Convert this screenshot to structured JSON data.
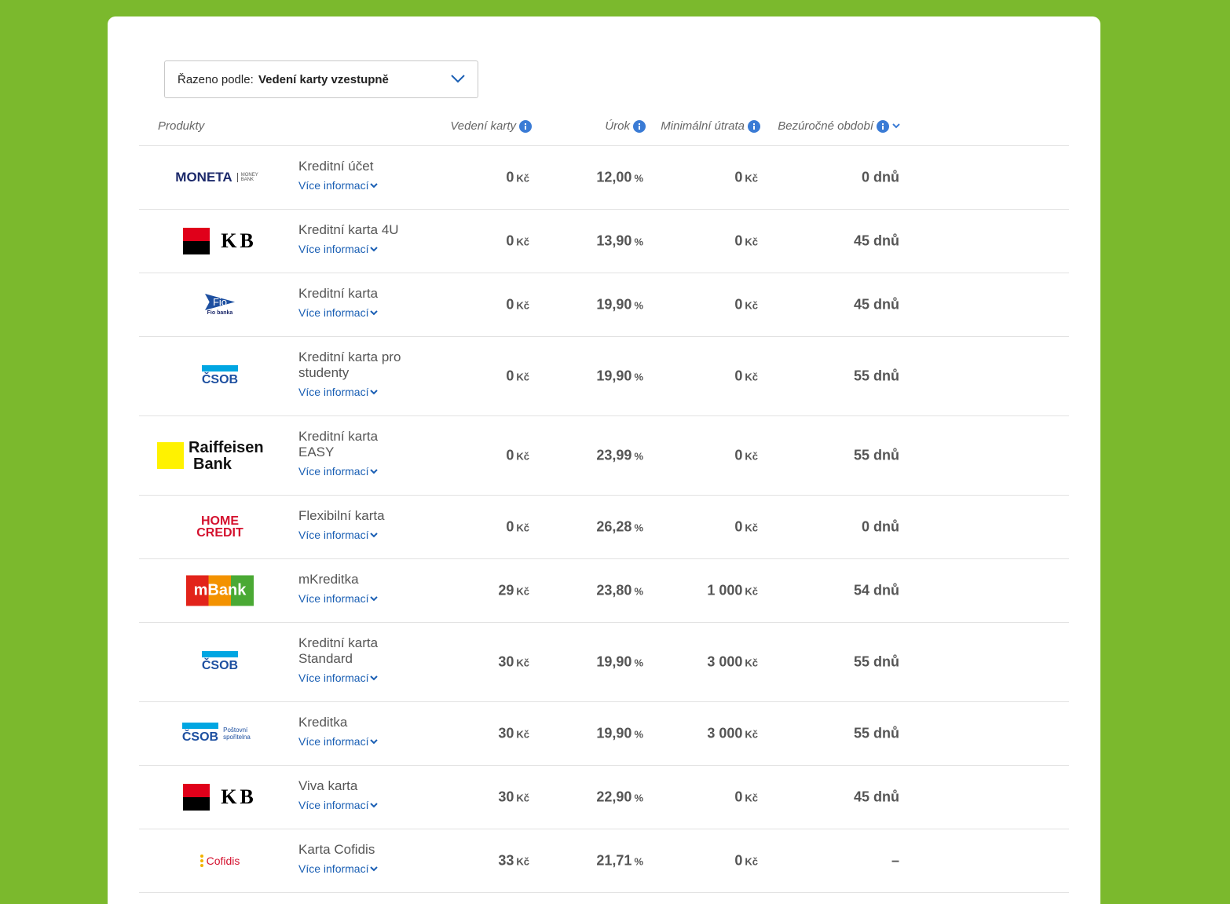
{
  "sort": {
    "label": "Řazeno podle:",
    "value": "Vedení karty vzestupně"
  },
  "header": {
    "product": "Produkty",
    "fee": "Vedení karty",
    "rate": "Úrok",
    "min": "Minimální útrata",
    "period": "Bezúročné období"
  },
  "rows": [
    {
      "logo": [
        "MONETA",
        "MONEY BANK"
      ],
      "name": "Kreditní účet",
      "link": "Více informací",
      "fee": [
        "0",
        "Kč"
      ],
      "rate": [
        "12,00",
        "%"
      ],
      "min": [
        "0",
        "Kč"
      ],
      "period": "0 dnů"
    },
    {
      "logo": [
        "KB"
      ],
      "name": "Kreditní karta 4U",
      "link": "Více informací",
      "fee": [
        "0",
        "Kč"
      ],
      "rate": [
        "13,90",
        "%"
      ],
      "min": [
        "0",
        "Kč"
      ],
      "period": "45 dnů"
    },
    {
      "logo": [
        "Fio",
        "Fio banka"
      ],
      "name": "Kreditní karta",
      "link": "Více informací",
      "fee": [
        "0",
        "Kč"
      ],
      "rate": [
        "19,90",
        "%"
      ],
      "min": [
        "0",
        "Kč"
      ],
      "period": "45 dnů"
    },
    {
      "logo": [
        "ČSOB"
      ],
      "name": "Kreditní karta pro studenty",
      "link": "Více informací",
      "fee": [
        "0",
        "Kč"
      ],
      "rate": [
        "19,90",
        "%"
      ],
      "min": [
        "0",
        "Kč"
      ],
      "period": "55 dnů"
    },
    {
      "logo": [
        "Raiffeisen",
        "Bank"
      ],
      "name": "Kreditní karta EASY",
      "link": "Více informací",
      "fee": [
        "0",
        "Kč"
      ],
      "rate": [
        "23,99",
        "%"
      ],
      "min": [
        "0",
        "Kč"
      ],
      "period": "55 dnů"
    },
    {
      "logo": [
        "HOME",
        "CREDIT"
      ],
      "name": "Flexibilní karta",
      "link": "Více informací",
      "fee": [
        "0",
        "Kč"
      ],
      "rate": [
        "26,28",
        "%"
      ],
      "min": [
        "0",
        "Kč"
      ],
      "period": "0 dnů"
    },
    {
      "logo": [
        "mBank"
      ],
      "name": "mKreditka",
      "link": "Více informací",
      "fee": [
        "29",
        "Kč"
      ],
      "rate": [
        "23,80",
        "%"
      ],
      "min": [
        "1 000",
        "Kč"
      ],
      "period": "54 dnů"
    },
    {
      "logo": [
        "ČSOB"
      ],
      "name": "Kreditní karta Standard",
      "link": "Více informací",
      "fee": [
        "30",
        "Kč"
      ],
      "rate": [
        "19,90",
        "%"
      ],
      "min": [
        "3 000",
        "Kč"
      ],
      "period": "55 dnů"
    },
    {
      "logo": [
        "ČSOB",
        "Poštovní spořitelna"
      ],
      "name": "Kreditka",
      "link": "Více informací",
      "fee": [
        "30",
        "Kč"
      ],
      "rate": [
        "19,90",
        "%"
      ],
      "min": [
        "3 000",
        "Kč"
      ],
      "period": "55 dnů"
    },
    {
      "logo": [
        "KB"
      ],
      "name": "Viva karta",
      "link": "Více informací",
      "fee": [
        "30",
        "Kč"
      ],
      "rate": [
        "22,90",
        "%"
      ],
      "min": [
        "0",
        "Kč"
      ],
      "period": "45 dnů"
    },
    {
      "logo": [
        "Cofidis"
      ],
      "name": "Karta Cofidis",
      "link": "Více informací",
      "fee": [
        "33",
        "Kč"
      ],
      "rate": [
        "21,71",
        "%"
      ],
      "min": [
        "0",
        "Kč"
      ],
      "period": "–"
    }
  ]
}
